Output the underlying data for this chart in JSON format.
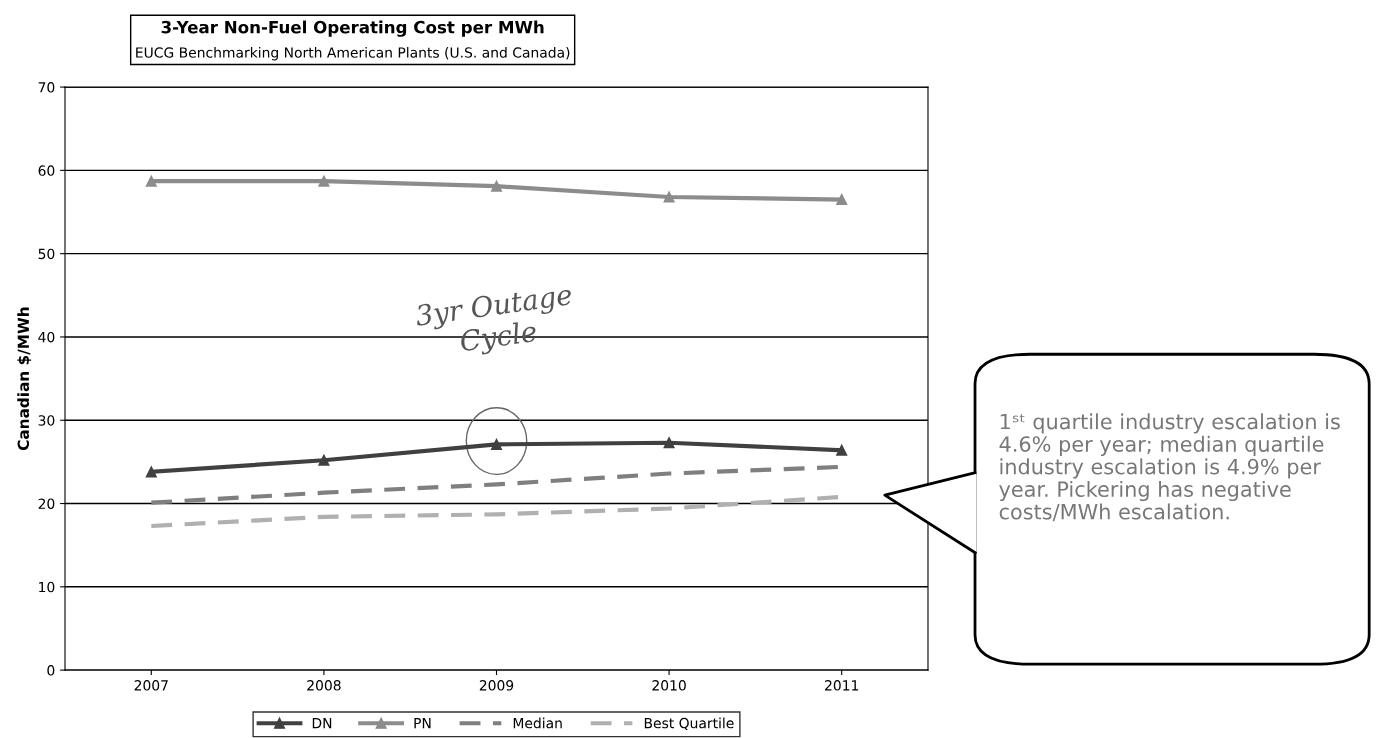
{
  "chart_data": {
    "type": "line",
    "title": "3-Year Non-Fuel Operating Cost per MWh",
    "subtitle": "EUCG Benchmarking North American Plants (U.S. and Canada)",
    "ylabel": "Canadian $/MWh",
    "categories": [
      "2007",
      "2008",
      "2009",
      "2010",
      "2011"
    ],
    "series": [
      {
        "name": "DN",
        "color": "#404040",
        "values": [
          23.8,
          25.2,
          27.1,
          27.3,
          26.4
        ],
        "marker": "triangle",
        "line_style": "solid"
      },
      {
        "name": "PN",
        "color": "#8c8c8c",
        "values": [
          58.7,
          58.7,
          58.1,
          56.8,
          56.5
        ],
        "marker": "triangle",
        "line_style": "solid"
      },
      {
        "name": "Median",
        "color": "#7f7f7f",
        "values": [
          20.1,
          21.3,
          22.3,
          23.6,
          24.4
        ],
        "marker": "none",
        "line_style": "dashed"
      },
      {
        "name": "Best Quartile",
        "color": "#b0b0b0",
        "values": [
          17.3,
          18.4,
          18.7,
          19.4,
          20.8
        ],
        "marker": "none",
        "line_style": "dashed"
      }
    ],
    "ylim": [
      0,
      70
    ],
    "yticks": [
      0,
      10,
      20,
      30,
      40,
      50,
      60,
      70
    ],
    "grid": "y",
    "legend": "bottom",
    "annotations": [
      "3yr Outage\nCycle",
      "1ˢᵗ quartile industry escalation is 4.6% per year; median quartile industry escalation is 4.9% per year. Pickering has negative costs/MWh escalation."
    ]
  }
}
